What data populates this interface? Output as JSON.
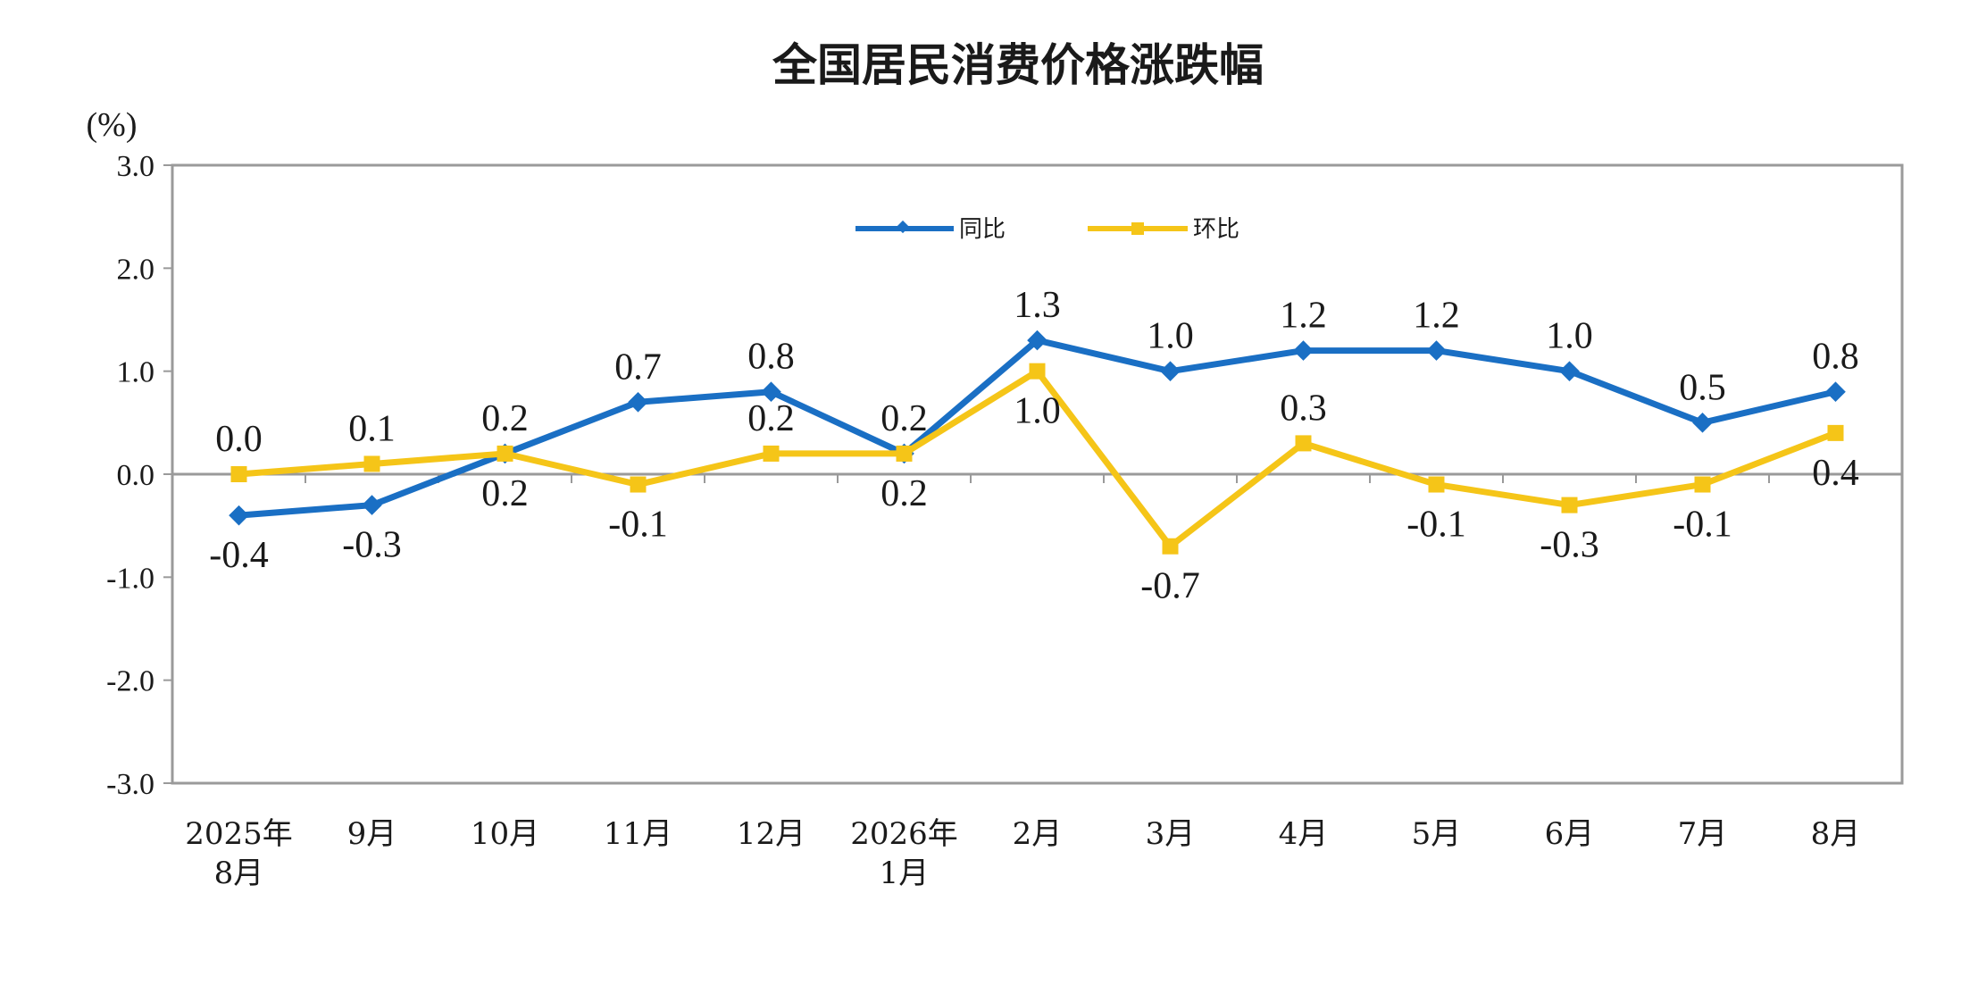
{
  "chart_data": {
    "type": "line",
    "title": "全国居民消费价格涨跌幅",
    "ylabel": "(%)",
    "ylim": [
      -3.0,
      3.0
    ],
    "yticks": [
      "3.0",
      "2.0",
      "1.0",
      "0.0",
      "-1.0",
      "-2.0",
      "-3.0"
    ],
    "ytick_values": [
      3,
      2,
      1,
      0,
      -1,
      -2,
      -3
    ],
    "categories": [
      [
        "2025年",
        "8月"
      ],
      [
        "9月"
      ],
      [
        "10月"
      ],
      [
        "11月"
      ],
      [
        "12月"
      ],
      [
        "2026年",
        "1月"
      ],
      [
        "2月"
      ],
      [
        "3月"
      ],
      [
        "4月"
      ],
      [
        "5月"
      ],
      [
        "6月"
      ],
      [
        "7月"
      ],
      [
        "8月"
      ]
    ],
    "grid": false,
    "legend_position": "top-center",
    "series": [
      {
        "name": "同比",
        "color": "#1a6fc4",
        "marker": "diamond",
        "values": [
          -0.4,
          -0.3,
          0.2,
          0.7,
          0.8,
          0.2,
          1.3,
          1.0,
          1.2,
          1.2,
          1.0,
          0.5,
          0.8
        ],
        "labels": [
          "-0.4",
          "-0.3",
          "0.2",
          "0.7",
          "0.8",
          "0.2",
          "1.3",
          "1.0",
          "1.2",
          "1.2",
          "1.0",
          "0.5",
          "0.8"
        ],
        "label_pos": [
          "below",
          "below",
          "above",
          "above",
          "above",
          "above",
          "above",
          "above",
          "above",
          "above",
          "above",
          "above",
          "above"
        ]
      },
      {
        "name": "环比",
        "color": "#f5c518",
        "marker": "square",
        "values": [
          0.0,
          0.1,
          0.2,
          -0.1,
          0.2,
          0.2,
          1.0,
          -0.7,
          0.3,
          -0.1,
          -0.3,
          -0.1,
          0.4
        ],
        "labels": [
          "0.0",
          "0.1",
          "0.2",
          "-0.1",
          "0.2",
          "0.2",
          "1.0",
          "-0.7",
          "0.3",
          "-0.1",
          "-0.3",
          "-0.1",
          "0.4"
        ],
        "label_pos": [
          "above",
          "above",
          "below",
          "below",
          "above",
          "below",
          "below",
          "below",
          "above",
          "below",
          "below",
          "below",
          "below"
        ]
      }
    ]
  }
}
